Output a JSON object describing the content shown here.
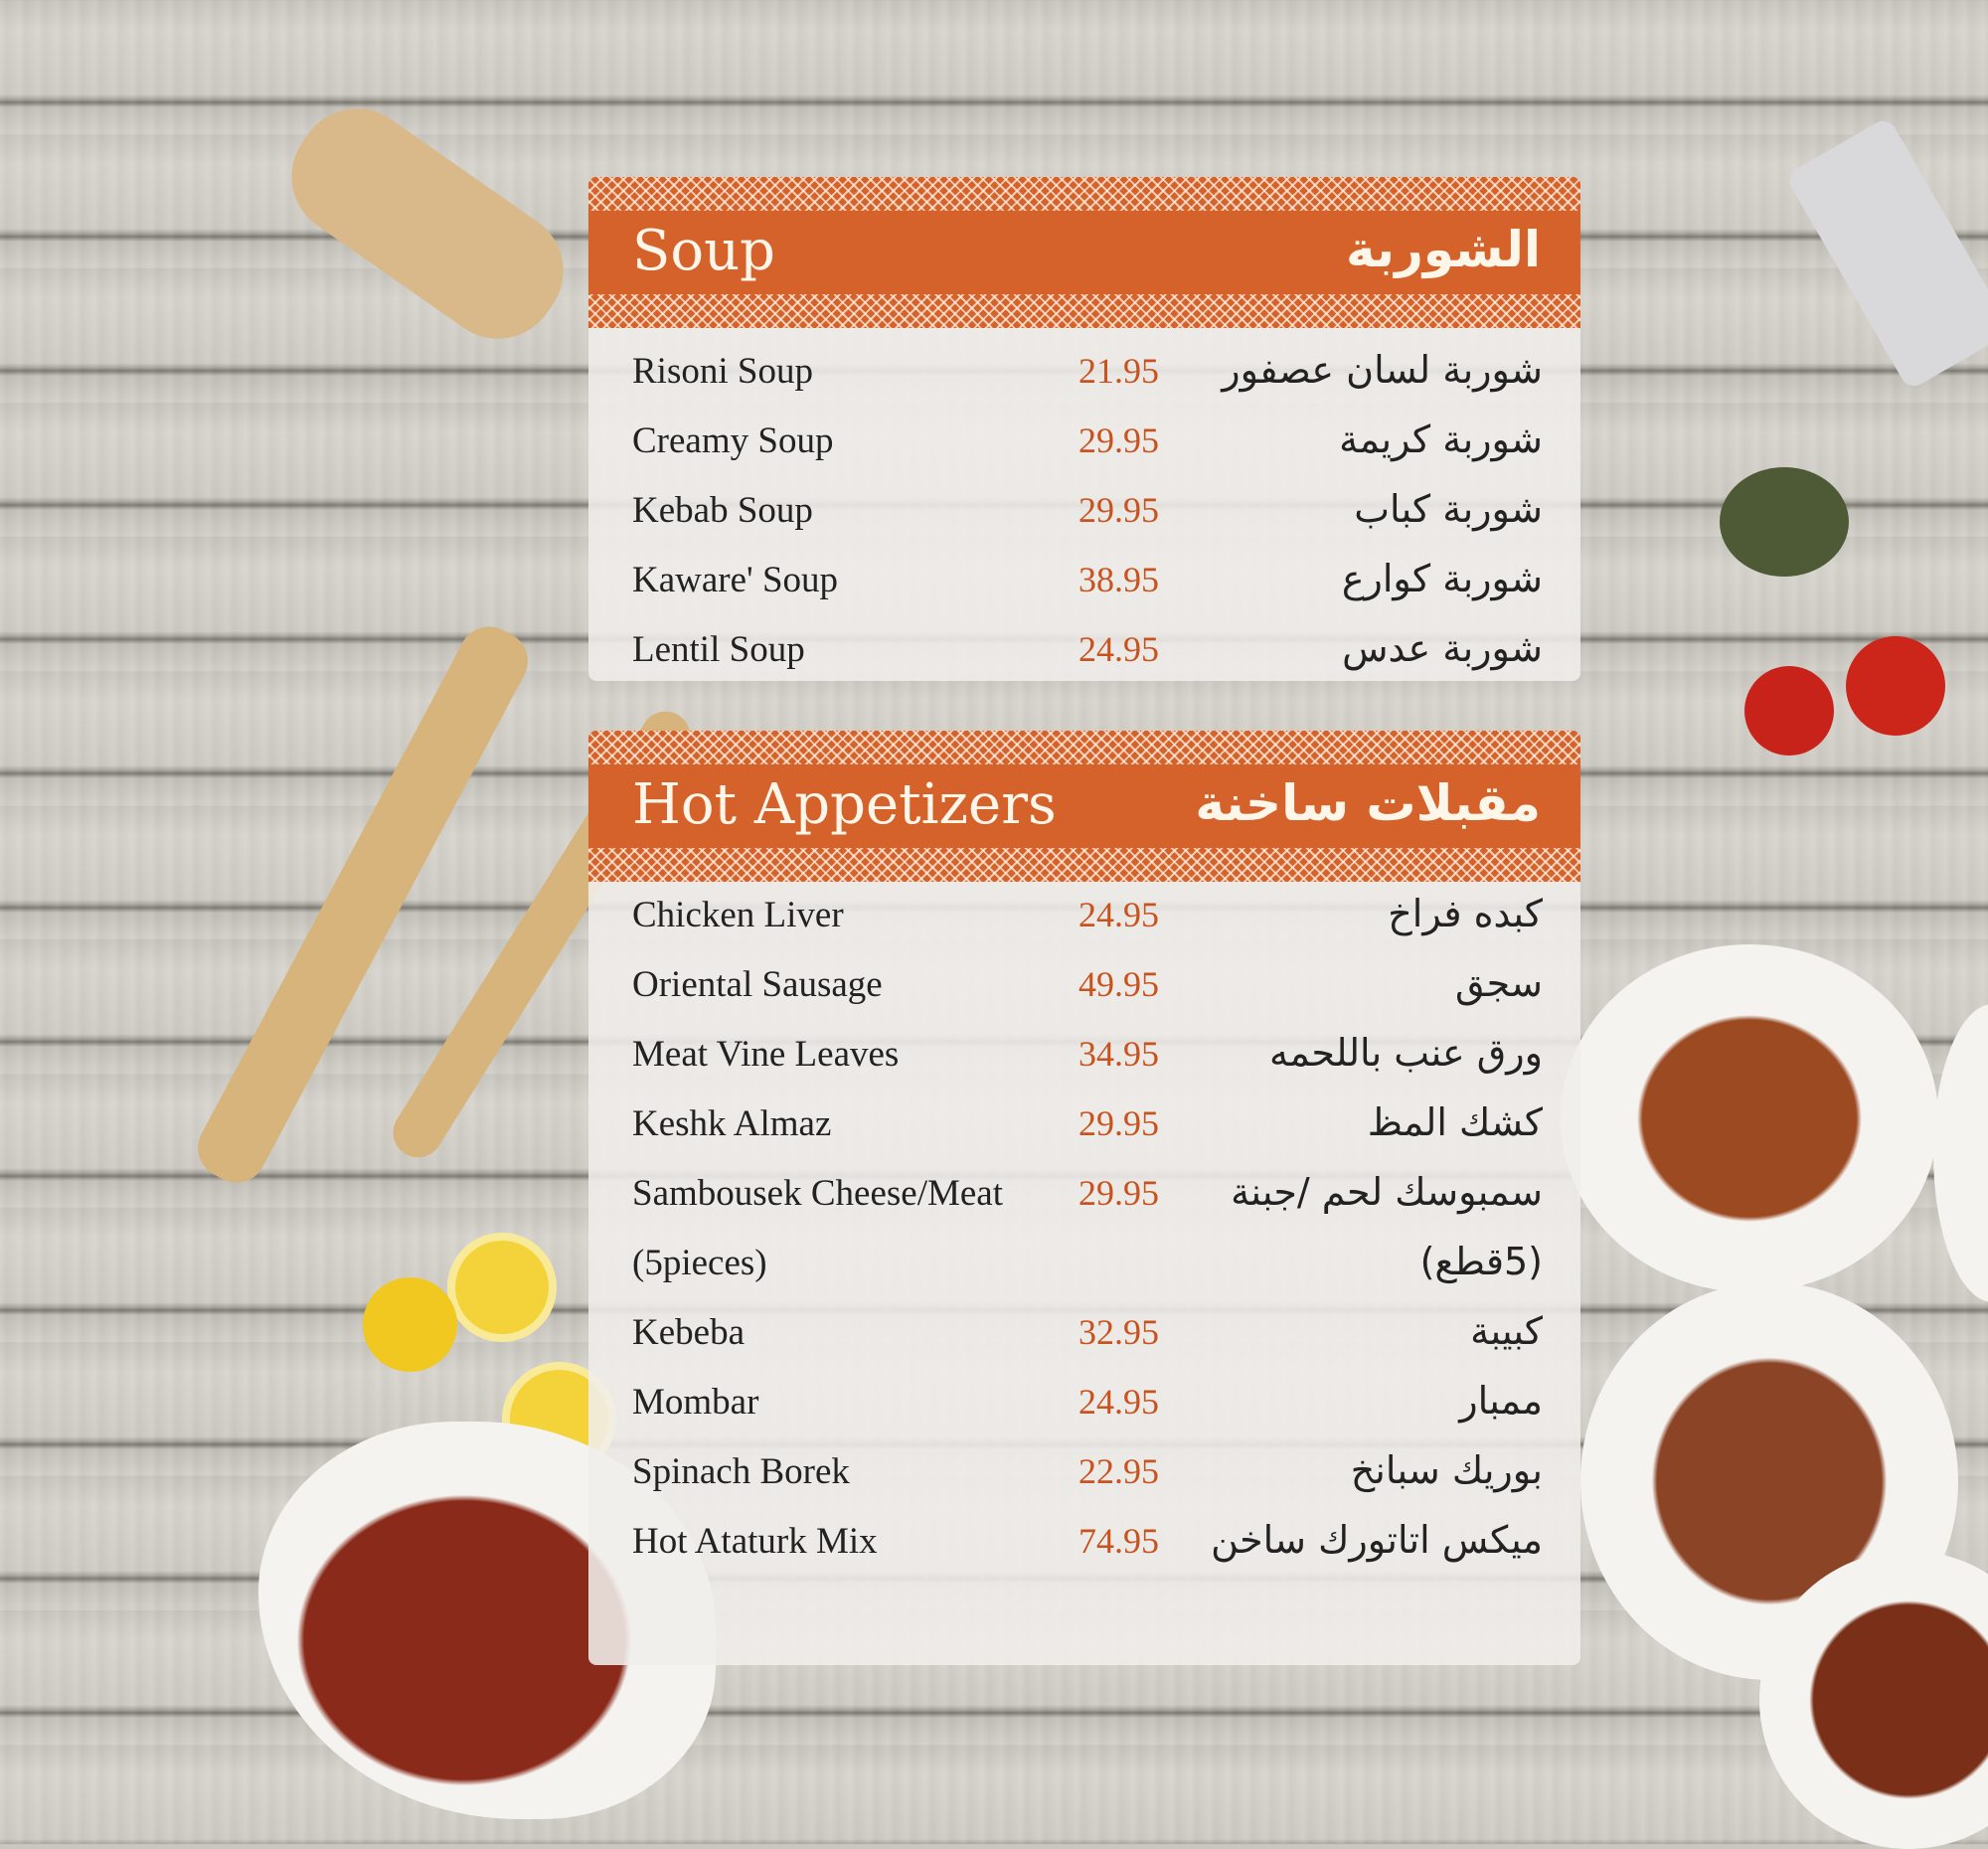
{
  "colors": {
    "accent": "#d4622a",
    "price": "#c8531f"
  },
  "sections": [
    {
      "title": "Soup",
      "title_ar": "الشوربة",
      "items": [
        {
          "name": "Risoni Soup",
          "price": "21.95",
          "name_ar": "شوربة لسان عصفور"
        },
        {
          "name": "Creamy Soup",
          "price": "29.95",
          "name_ar": "شوربة كريمة"
        },
        {
          "name": "Kebab Soup",
          "price": "29.95",
          "name_ar": "شوربة كباب"
        },
        {
          "name": "Kaware' Soup",
          "price": "38.95",
          "name_ar": "شوربة كوارع"
        },
        {
          "name": "Lentil Soup",
          "price": "24.95",
          "name_ar": "شوربة عدس"
        }
      ]
    },
    {
      "title": "Hot Appetizers",
      "title_ar": "مقبلات ساخنة",
      "items": [
        {
          "name": "Chicken Liver",
          "price": "24.95",
          "name_ar": "كبده فراخ"
        },
        {
          "name": "Oriental Sausage",
          "price": "49.95",
          "name_ar": "سجق"
        },
        {
          "name": "Meat Vine Leaves",
          "price": "34.95",
          "name_ar": "ورق عنب باللحمه"
        },
        {
          "name": "Keshk Almaz",
          "price": "29.95",
          "name_ar": "كشك المظ"
        },
        {
          "name": "Sambousek Cheese/Meat",
          "price": "29.95",
          "name_ar": "سمبوسك لحم /جبنة"
        },
        {
          "name": "(5pieces)",
          "price": "",
          "name_ar": "(5قطع)"
        },
        {
          "name": "Kebeba",
          "price": "32.95",
          "name_ar": "كبيبة"
        },
        {
          "name": "Mombar",
          "price": "24.95",
          "name_ar": "ممبار"
        },
        {
          "name": "Spinach Borek",
          "price": "22.95",
          "name_ar": "بوريك سبانخ"
        },
        {
          "name": "Hot Ataturk Mix",
          "price": "74.95",
          "name_ar": "ميكس اتاتورك ساخن"
        }
      ]
    }
  ]
}
